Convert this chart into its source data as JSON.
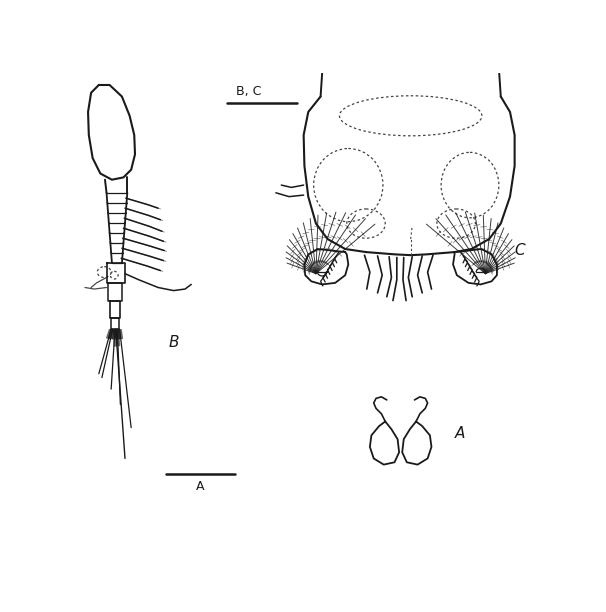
{
  "bg_color": "#ffffff",
  "line_color": "#1a1a1a",
  "dashed_color": "#444444",
  "label_B": "B",
  "label_C": "C",
  "label_A": "A",
  "scale_label_BC": "B, C",
  "scale_label_A": "A",
  "figsize": [
    6.06,
    6.12
  ],
  "dpi": 100
}
